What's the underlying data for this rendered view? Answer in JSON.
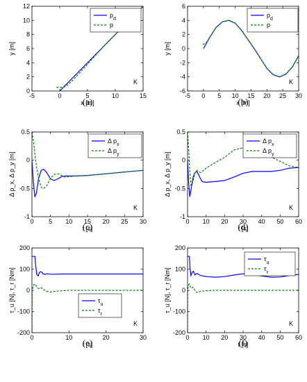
{
  "colors": {
    "blue": "#0000ff",
    "green": "#008000",
    "axis": "#000000"
  },
  "chart_data": [
    {
      "id": "a",
      "type": "line",
      "panel_label": "(a)",
      "xlabel": "x [m]",
      "ylabel": "y [m]",
      "corner_text": "K",
      "xlim": [
        -5,
        15
      ],
      "ylim": [
        0,
        12
      ],
      "xticks": [
        -5,
        0,
        5,
        10,
        15
      ],
      "yticks": [
        0,
        2,
        4,
        6,
        8,
        10,
        12
      ],
      "legend": {
        "position": "top-right"
      },
      "series": [
        {
          "name": "p_d",
          "label_base": "p",
          "label_sub": "d",
          "color": "blue",
          "style": "solid",
          "x": [
            0,
            15
          ],
          "y": [
            0,
            12
          ]
        },
        {
          "name": "p",
          "label_base": "p",
          "label_sub": "",
          "color": "green",
          "style": "dashed",
          "x": [
            -0.6,
            0.2,
            0.9,
            1.5,
            2.3,
            3.5,
            5,
            8,
            15
          ],
          "y": [
            0.5,
            0.5,
            0.6,
            0.9,
            1.5,
            2.5,
            3.8,
            6.4,
            12
          ]
        }
      ]
    },
    {
      "id": "b",
      "type": "line",
      "panel_label": "(b)",
      "xlabel": "x [m]",
      "ylabel": "y [m]",
      "corner_text": "K",
      "xlim": [
        -5,
        30
      ],
      "ylim": [
        -6,
        6
      ],
      "xticks": [
        -5,
        0,
        5,
        10,
        15,
        20,
        25,
        30
      ],
      "yticks": [
        -6,
        -4,
        -2,
        0,
        2,
        4,
        6
      ],
      "legend": {
        "position": "top-right"
      },
      "series": [
        {
          "name": "p_d",
          "label_base": "p",
          "label_sub": "d",
          "color": "blue",
          "style": "solid",
          "x": [
            0,
            2,
            4,
            6,
            8,
            10,
            12,
            14,
            16,
            18,
            20,
            22,
            24,
            26,
            28,
            30
          ],
          "y": [
            0,
            1.6,
            3.0,
            3.8,
            4.0,
            3.6,
            2.6,
            1.3,
            0,
            -1.4,
            -2.8,
            -3.7,
            -4.0,
            -3.6,
            -2.6,
            -1.0
          ]
        },
        {
          "name": "p",
          "label_base": "p",
          "label_sub": "",
          "color": "green",
          "style": "dashed",
          "x": [
            -0.2,
            0.5,
            1.2,
            2,
            4,
            6,
            8,
            10,
            12,
            14,
            16,
            18,
            20,
            22,
            24,
            26,
            28,
            30
          ],
          "y": [
            0.6,
            0.7,
            1.0,
            1.6,
            3.0,
            3.8,
            4.0,
            3.6,
            2.6,
            1.3,
            0,
            -1.4,
            -2.8,
            -3.7,
            -4.0,
            -3.6,
            -2.6,
            -1.0
          ]
        }
      ]
    },
    {
      "id": "c",
      "type": "line",
      "panel_label": "(c)",
      "xlabel": "t [s]",
      "ylabel": "Δ p_x, Δ p_y [m]",
      "corner_text": "K",
      "xlim": [
        0,
        30
      ],
      "ylim": [
        -1,
        0.5
      ],
      "xticks": [
        0,
        5,
        10,
        15,
        20,
        25,
        30
      ],
      "yticks": [
        -1,
        -0.5,
        0,
        0.5
      ],
      "legend": {
        "position": "top-right"
      },
      "series": [
        {
          "name": "Δ p_x",
          "label_base": "Δ p",
          "label_sub": "x",
          "color": "blue",
          "style": "solid",
          "x": [
            0,
            0.4,
            0.8,
            1.2,
            1.8,
            2.5,
            3.2,
            4,
            5,
            6,
            7,
            8,
            9,
            10,
            12,
            15,
            20,
            25,
            30
          ],
          "y": [
            0,
            -0.4,
            -0.65,
            -0.58,
            -0.32,
            -0.18,
            -0.16,
            -0.22,
            -0.33,
            -0.36,
            -0.33,
            -0.29,
            -0.28,
            -0.28,
            -0.28,
            -0.27,
            -0.24,
            -0.21,
            -0.18
          ]
        },
        {
          "name": "Δ p_y",
          "label_base": "Δ p",
          "label_sub": "y",
          "color": "green",
          "style": "dashed",
          "x": [
            0,
            0.4,
            0.8,
            1.2,
            1.8,
            2.5,
            3.2,
            4,
            5,
            6,
            7,
            8,
            9,
            10,
            12,
            15,
            20,
            25,
            30
          ],
          "y": [
            0.5,
            0.35,
            0.1,
            -0.1,
            -0.32,
            -0.48,
            -0.5,
            -0.45,
            -0.32,
            -0.25,
            -0.24,
            -0.27,
            -0.3,
            -0.29,
            -0.28,
            -0.27,
            -0.24,
            -0.21,
            -0.18
          ]
        }
      ]
    },
    {
      "id": "d",
      "type": "line",
      "panel_label": "(d)",
      "xlabel": "t [s]",
      "ylabel": "Δ p_x, Δ p_y [m]",
      "corner_text": "K",
      "xlim": [
        0,
        60
      ],
      "ylim": [
        -1,
        0.5
      ],
      "xticks": [
        0,
        10,
        20,
        30,
        40,
        50,
        60
      ],
      "yticks": [
        -1,
        -0.5,
        0,
        0.5
      ],
      "legend": {
        "position": "top-right"
      },
      "series": [
        {
          "name": "Δ p_x",
          "label_base": "Δ p",
          "label_sub": "x",
          "color": "blue",
          "style": "solid",
          "x": [
            0,
            0.6,
            1.2,
            2,
            3,
            4,
            5,
            6,
            7,
            8,
            10,
            14,
            20,
            25,
            30,
            35,
            40,
            45,
            50,
            55,
            60
          ],
          "y": [
            0,
            -0.4,
            -0.65,
            -0.5,
            -0.3,
            -0.22,
            -0.2,
            -0.26,
            -0.33,
            -0.38,
            -0.39,
            -0.38,
            -0.36,
            -0.3,
            -0.23,
            -0.2,
            -0.2,
            -0.2,
            -0.18,
            -0.14,
            -0.13
          ]
        },
        {
          "name": "Δ p_y",
          "label_base": "Δ p",
          "label_sub": "y",
          "color": "green",
          "style": "dashed",
          "x": [
            0,
            0.6,
            1.2,
            2,
            3,
            4,
            5,
            6,
            7,
            8,
            10,
            14,
            20,
            25,
            30,
            35,
            40,
            45,
            50,
            55,
            60
          ],
          "y": [
            0.5,
            0.2,
            -0.2,
            -0.48,
            -0.36,
            -0.22,
            -0.18,
            -0.2,
            -0.22,
            -0.2,
            -0.14,
            -0.06,
            0.05,
            0.18,
            0.22,
            0.2,
            0.15,
            0.06,
            -0.02,
            -0.1,
            -0.13
          ]
        }
      ]
    },
    {
      "id": "e",
      "type": "line",
      "panel_label": "(e)",
      "xlabel": "t [s]",
      "ylabel": "τ_u [N], τ_r [Nm]",
      "corner_text": "K",
      "xlim": [
        0,
        30
      ],
      "ylim": [
        -200,
        200
      ],
      "xticks": [
        0,
        10,
        20,
        30
      ],
      "yticks": [
        -200,
        -100,
        0,
        100,
        200
      ],
      "legend": {
        "position": "lower-right-center"
      },
      "series": [
        {
          "name": "τ_u",
          "label_base": "τ",
          "label_sub": "u",
          "color": "blue",
          "style": "solid",
          "x": [
            0,
            0.02,
            0.8,
            1.0,
            1.3,
            1.7,
            2.0,
            2.5,
            3.0,
            3.5,
            4,
            5,
            6,
            8,
            10,
            15,
            20,
            25,
            30
          ],
          "y": [
            160,
            160,
            160,
            120,
            75,
            68,
            85,
            88,
            78,
            75,
            78,
            76,
            76,
            77,
            77,
            77,
            77,
            77,
            77
          ]
        },
        {
          "name": "τ_r",
          "label_base": "τ",
          "label_sub": "r",
          "color": "green",
          "style": "dashed",
          "x": [
            0,
            0.05,
            0.4,
            0.8,
            1.2,
            1.6,
            2.0,
            2.5,
            3,
            4,
            5,
            6,
            8,
            10,
            15,
            20,
            25,
            30
          ],
          "y": [
            -190,
            0,
            25,
            30,
            20,
            10,
            8,
            12,
            5,
            -5,
            -8,
            -5,
            -2,
            0,
            0,
            0,
            0,
            0
          ]
        }
      ]
    },
    {
      "id": "f",
      "type": "line",
      "panel_label": "(f)",
      "xlabel": "t [s]",
      "ylabel": "τ_u [N], τ_r [Nm]",
      "corner_text": "K",
      "xlim": [
        0,
        60
      ],
      "ylim": [
        -200,
        200
      ],
      "xticks": [
        0,
        10,
        20,
        30,
        40,
        50,
        60
      ],
      "yticks": [
        -200,
        -100,
        0,
        100,
        200
      ],
      "legend": {
        "position": "top-right"
      },
      "series": [
        {
          "name": "τ_u",
          "label_base": "τ",
          "label_sub": "u",
          "color": "blue",
          "style": "solid",
          "x": [
            0,
            0.02,
            1.0,
            1.3,
            1.8,
            2.5,
            3.2,
            4,
            5,
            7,
            10,
            15,
            20,
            25,
            30,
            35,
            40,
            45,
            50,
            55,
            60
          ],
          "y": [
            160,
            160,
            160,
            110,
            70,
            85,
            90,
            72,
            80,
            70,
            65,
            62,
            65,
            72,
            78,
            75,
            68,
            62,
            63,
            70,
            75
          ]
        },
        {
          "name": "τ_r",
          "label_base": "τ",
          "label_sub": "r",
          "color": "green",
          "style": "dashed",
          "x": [
            0,
            0.05,
            0.5,
            1.0,
            1.5,
            2,
            3,
            4,
            5,
            7,
            10,
            15,
            20,
            30,
            40,
            50,
            60
          ],
          "y": [
            -190,
            0,
            25,
            30,
            15,
            10,
            15,
            0,
            -10,
            -5,
            -2,
            0,
            0,
            0,
            0,
            0,
            0
          ]
        }
      ]
    }
  ]
}
